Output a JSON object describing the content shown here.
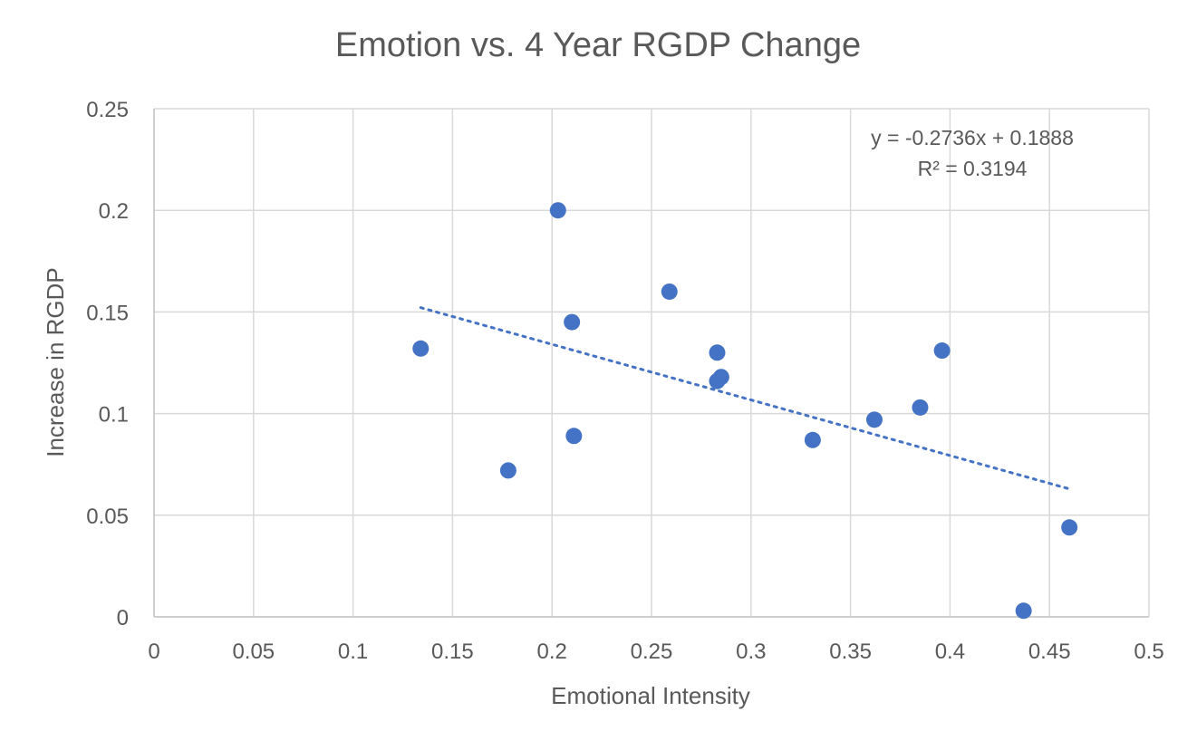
{
  "chart_data": {
    "type": "scatter",
    "title": "Emotion vs. 4 Year RGDP Change",
    "xlabel": "Emotional Intensity",
    "ylabel": "Increase in RGDP",
    "xlim": [
      0,
      0.5
    ],
    "ylim": [
      0,
      0.25
    ],
    "x_ticks": [
      "0",
      "0.05",
      "0.1",
      "0.15",
      "0.2",
      "0.25",
      "0.3",
      "0.35",
      "0.4",
      "0.45",
      "0.5"
    ],
    "y_ticks": [
      "0",
      "0.05",
      "0.1",
      "0.15",
      "0.2",
      "0.25"
    ],
    "grid": true,
    "legend": "none",
    "series": [
      {
        "color": "#4472c4",
        "points": [
          {
            "x": 0.134,
            "y": 0.132
          },
          {
            "x": 0.178,
            "y": 0.072
          },
          {
            "x": 0.203,
            "y": 0.2
          },
          {
            "x": 0.21,
            "y": 0.145
          },
          {
            "x": 0.211,
            "y": 0.089
          },
          {
            "x": 0.259,
            "y": 0.16
          },
          {
            "x": 0.283,
            "y": 0.13
          },
          {
            "x": 0.283,
            "y": 0.116
          },
          {
            "x": 0.285,
            "y": 0.118
          },
          {
            "x": 0.331,
            "y": 0.087
          },
          {
            "x": 0.362,
            "y": 0.097
          },
          {
            "x": 0.385,
            "y": 0.103
          },
          {
            "x": 0.396,
            "y": 0.131
          },
          {
            "x": 0.437,
            "y": 0.003
          },
          {
            "x": 0.46,
            "y": 0.044
          }
        ]
      }
    ],
    "trendline": {
      "type": "linear",
      "style": "dotted",
      "slope": -0.2736,
      "intercept": 0.1888,
      "x_range": [
        0.134,
        0.46
      ],
      "equation": "y = -0.2736x + 0.1888",
      "r_squared": "R² = 0.3194"
    }
  }
}
